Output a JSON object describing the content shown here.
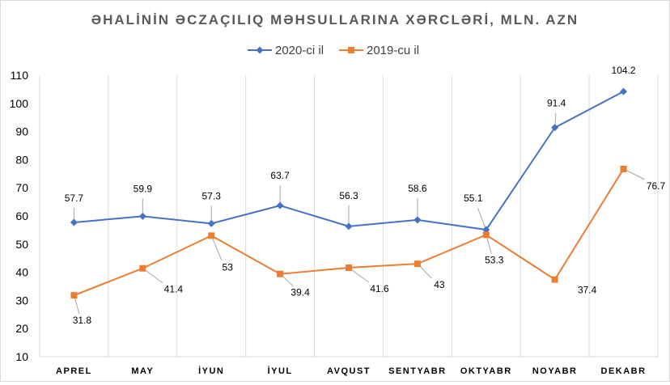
{
  "chart_data": {
    "type": "line",
    "title": "ƏHALİNİN ƏCZAÇILIQ MƏHSULLARINA XƏRCLƏRİ, MLN. AZN",
    "categories": [
      "APREL",
      "MAY",
      "İYUN",
      "İYUL",
      "AVQUST",
      "SENTYABR",
      "OKTYABR",
      "NOYABR",
      "DEKABR"
    ],
    "ylim": [
      10,
      110
    ],
    "yticks": [
      10,
      20,
      30,
      40,
      50,
      60,
      70,
      80,
      90,
      100,
      110
    ],
    "grid": "vertical-category-lines",
    "legend_position": "top",
    "series": [
      {
        "name": "2020-ci il",
        "color": "#4472c4",
        "marker": "diamond",
        "values": [
          57.7,
          59.9,
          57.3,
          63.7,
          56.3,
          58.6,
          55.1,
          91.4,
          104.2
        ],
        "labels": [
          "57.7",
          "59.9",
          "57.3",
          "63.7",
          "56.3",
          "58.6",
          "55.1",
          "91.4",
          "104.2"
        ]
      },
      {
        "name": "2019-cu il",
        "color": "#ed7d31",
        "marker": "square",
        "values": [
          31.8,
          41.4,
          53,
          39.4,
          41.6,
          43,
          53.3,
          37.4,
          76.7
        ],
        "labels": [
          "31.8",
          "41.4",
          "53",
          "39.4",
          "41.6",
          "43",
          "53.3",
          "37.4",
          "76.7"
        ]
      }
    ]
  }
}
